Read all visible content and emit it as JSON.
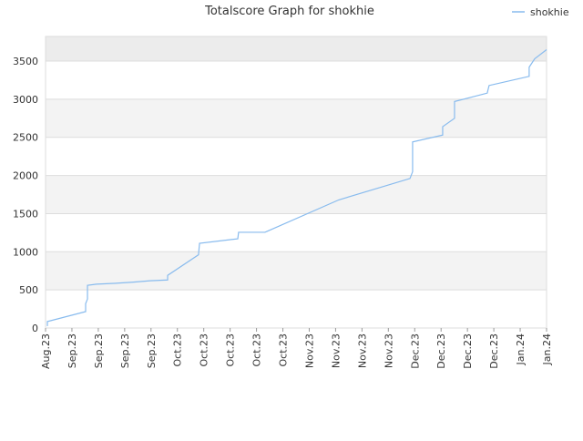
{
  "chart_data": {
    "type": "line",
    "title": "Totalscore Graph for shokhie",
    "x": [
      0.07,
      0.07,
      1.52,
      1.52,
      1.59,
      1.59,
      1.93,
      2.59,
      3.28,
      3.97,
      4.63,
      4.63,
      5.8,
      5.84,
      7.29,
      7.32,
      8.32,
      11.12,
      13.82,
      13.92,
      13.92,
      15.06,
      15.06,
      15.51,
      15.51,
      16.75,
      16.82,
      18.34,
      18.34,
      18.55,
      19
    ],
    "series": [
      {
        "name": "shokhie",
        "color": "#88bbee",
        "values": [
          25,
          85,
          215,
          320,
          380,
          560,
          575,
          585,
          600,
          620,
          630,
          690,
          960,
          1110,
          1170,
          1255,
          1255,
          1680,
          1960,
          2050,
          2440,
          2530,
          2640,
          2750,
          2970,
          3080,
          3180,
          3300,
          3420,
          3530,
          3650
        ]
      }
    ],
    "xlim": [
      0,
      19
    ],
    "xticks": [
      {
        "value": 0,
        "label": "Aug.23"
      },
      {
        "value": 1,
        "label": "Sep.23"
      },
      {
        "value": 2,
        "label": "Sep.23"
      },
      {
        "value": 3,
        "label": "Sep.23"
      },
      {
        "value": 4,
        "label": "Sep.23"
      },
      {
        "value": 5,
        "label": "Oct.23"
      },
      {
        "value": 6,
        "label": "Oct.23"
      },
      {
        "value": 7,
        "label": "Oct.23"
      },
      {
        "value": 8,
        "label": "Oct.23"
      },
      {
        "value": 9,
        "label": "Oct.23"
      },
      {
        "value": 10,
        "label": "Nov.23"
      },
      {
        "value": 11,
        "label": "Nov.23"
      },
      {
        "value": 12,
        "label": "Nov.23"
      },
      {
        "value": 13,
        "label": "Nov.23"
      },
      {
        "value": 14,
        "label": "Dec.23"
      },
      {
        "value": 15,
        "label": "Dec.23"
      },
      {
        "value": 16,
        "label": "Dec.23"
      },
      {
        "value": 17,
        "label": "Dec.23"
      },
      {
        "value": 18,
        "label": "Jan.24"
      },
      {
        "value": 19,
        "label": "Jan.24"
      }
    ],
    "ylim": [
      0,
      3823
    ],
    "yticks": [
      0,
      500,
      1000,
      1500,
      2000,
      2500,
      3000,
      3500
    ],
    "grid": true
  }
}
